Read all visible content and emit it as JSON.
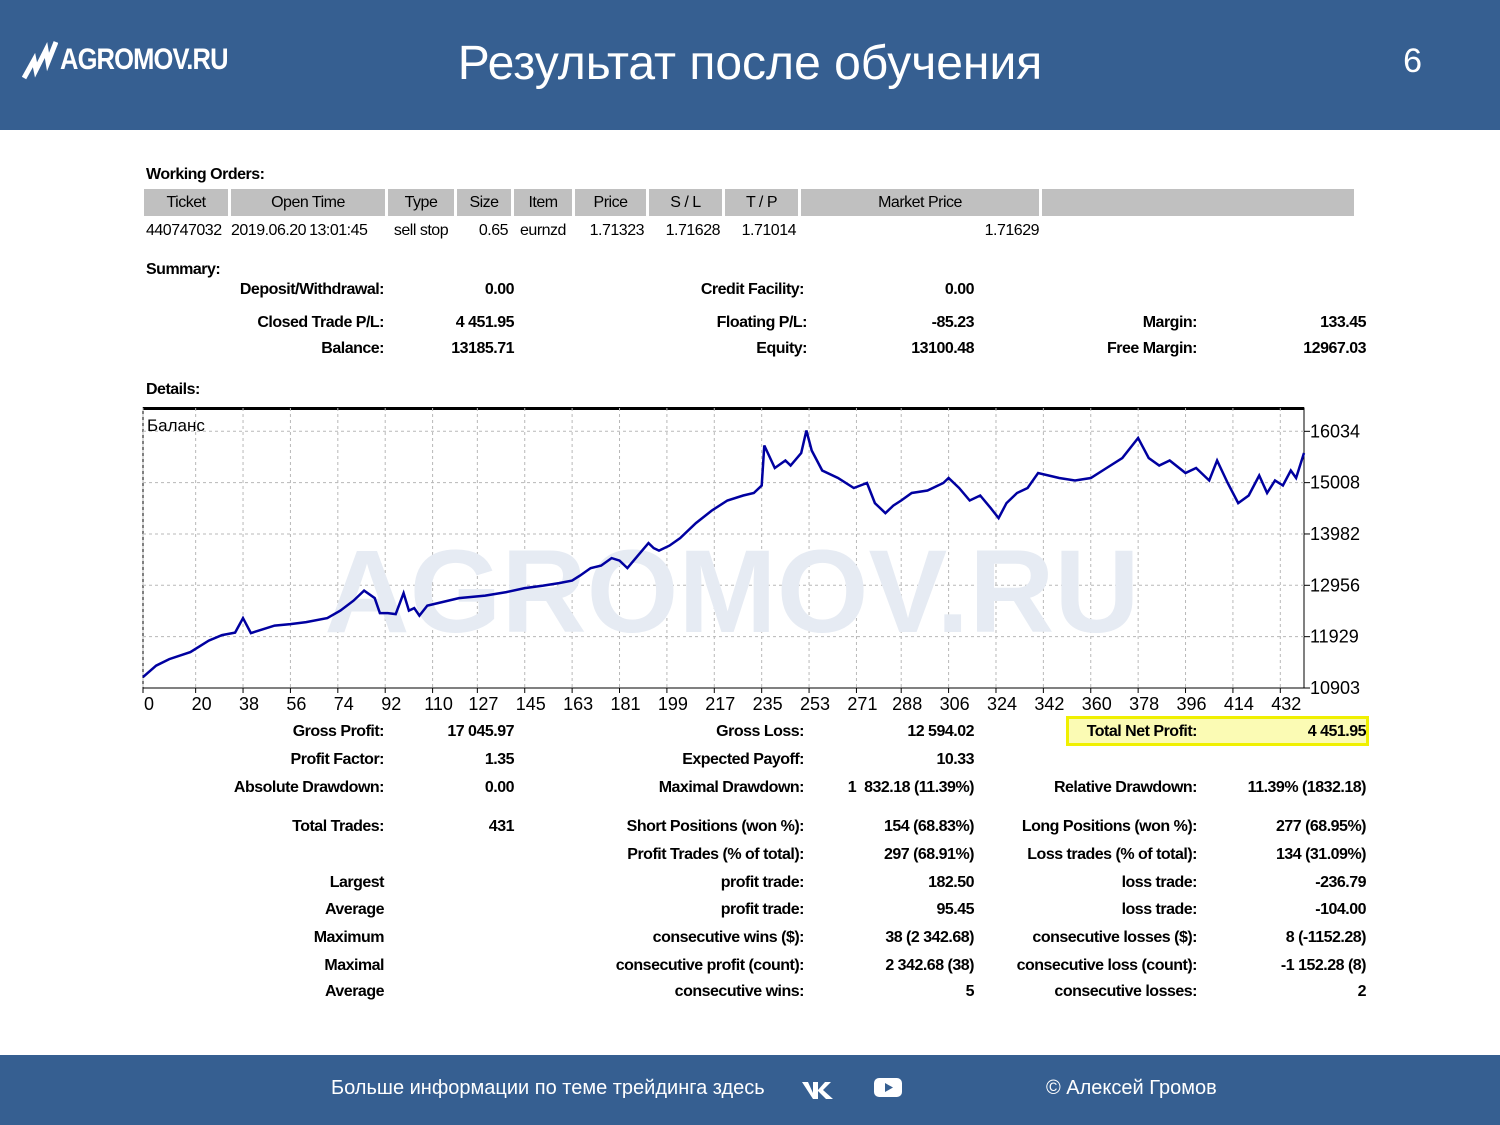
{
  "header": {
    "logo_text": "AGROMOV.RU",
    "title": "Результат после обучения",
    "page_number": "6",
    "bg_color": "#365f91"
  },
  "working_orders": {
    "heading": "Working Orders:",
    "columns": [
      "Ticket",
      "Open Time",
      "Type",
      "Size",
      "Item",
      "Price",
      "S / L",
      "T / P",
      "Market Price",
      ""
    ],
    "row": [
      "440747032",
      "2019.06.20",
      "13:01:45",
      "sell stop",
      "0.65",
      "eurnzd",
      "1.71323",
      "1.71628",
      "1.71014",
      "1.71629"
    ]
  },
  "summary": {
    "heading": "Summary:",
    "deposit_label": "Deposit/Withdrawal:",
    "deposit": "0.00",
    "credit_label": "Credit Facility:",
    "credit": "0.00",
    "closed_label": "Closed Trade P/L:",
    "closed": "4 451.95",
    "floating_label": "Floating P/L:",
    "floating": "-85.23",
    "margin_label": "Margin:",
    "margin": "133.45",
    "balance_label": "Balance:",
    "balance": "13185.71",
    "equity_label": "Equity:",
    "equity": "13100.48",
    "free_margin_label": "Free Margin:",
    "free_margin": "12967.03"
  },
  "details": {
    "heading": "Details:",
    "gross_profit_label": "Gross Profit:",
    "gross_profit": "17 045.97",
    "gross_loss_label": "Gross Loss:",
    "gross_loss": "12 594.02",
    "total_net_label": "Total Net Profit:",
    "total_net": "4 451.95",
    "profit_factor_label": "Profit Factor:",
    "profit_factor": "1.35",
    "expected_label": "Expected Payoff:",
    "expected": "10.33",
    "abs_dd_label": "Absolute Drawdown:",
    "abs_dd": "0.00",
    "max_dd_label": "Maximal Drawdown:",
    "max_dd": "1  832.18 (11.39%)",
    "rel_dd_label": "Relative Drawdown:",
    "rel_dd": "11.39% (1832.18)",
    "total_trades_label": "Total Trades:",
    "total_trades": "431",
    "short_label": "Short Positions (won %):",
    "short": "154 (68.83%)",
    "long_label": "Long Positions (won %):",
    "long": "277 (68.95%)",
    "profit_trades_label": "Profit Trades (% of total):",
    "profit_trades": "297 (68.91%)",
    "loss_trades_label": "Loss trades (% of total):",
    "loss_trades": "134 (31.09%)",
    "rows": [
      {
        "left": "Largest",
        "mid_label": "profit trade:",
        "mid": "182.50",
        "right_label": "loss trade:",
        "right": "-236.79"
      },
      {
        "left": "Average",
        "mid_label": "profit trade:",
        "mid": "95.45",
        "right_label": "loss trade:",
        "right": "-104.00"
      },
      {
        "left": "Maximum",
        "mid_label": "consecutive wins ($):",
        "mid": "38 (2 342.68)",
        "right_label": "consecutive losses ($):",
        "right": "8 (-1152.28)"
      },
      {
        "left": "Maximal",
        "mid_label": "consecutive profit (count):",
        "mid": "2 342.68 (38)",
        "right_label": "consecutive loss (count):",
        "right": "-1 152.28 (8)"
      },
      {
        "left": "Average",
        "mid_label": "consecutive wins:",
        "mid": "5",
        "right_label": "consecutive losses:",
        "right": "2"
      }
    ]
  },
  "chart_data": {
    "type": "line",
    "label": "Баланс",
    "watermark": "AGROMOV.RU",
    "x_ticks": [
      0,
      20,
      38,
      56,
      74,
      92,
      110,
      127,
      145,
      163,
      181,
      199,
      217,
      235,
      253,
      271,
      288,
      306,
      324,
      342,
      360,
      378,
      396,
      414,
      432
    ],
    "y_ticks": [
      10903,
      11929,
      12956,
      13982,
      15008,
      16034
    ],
    "xlim": [
      0,
      441
    ],
    "ylim": [
      10903,
      16500
    ],
    "grid": true,
    "color": "#0000a0",
    "series": [
      {
        "x": [
          0,
          5,
          10,
          18,
          25,
          30,
          35,
          38,
          41,
          44,
          50,
          56,
          62,
          70,
          75,
          80,
          84,
          88,
          90,
          93,
          96,
          99,
          101,
          103,
          105,
          108,
          112,
          120,
          130,
          138,
          145,
          152,
          158,
          163,
          166,
          170,
          174,
          178,
          181,
          184,
          188,
          192,
          194,
          196,
          200,
          204,
          210,
          216,
          222,
          228,
          232,
          235,
          236,
          240,
          244,
          246,
          250,
          252,
          254,
          258,
          264,
          270,
          275,
          278,
          282,
          285,
          288,
          292,
          298,
          304,
          306,
          310,
          314,
          318,
          322,
          325,
          328,
          332,
          336,
          340,
          344,
          348,
          354,
          360,
          366,
          372,
          378,
          382,
          386,
          390,
          396,
          400,
          405,
          408,
          412,
          416,
          420,
          424,
          427,
          430,
          433,
          436,
          438,
          441
        ],
        "y": [
          11120,
          11350,
          11480,
          11620,
          11850,
          11960,
          12010,
          12300,
          12000,
          12050,
          12150,
          12180,
          12220,
          12300,
          12450,
          12650,
          12850,
          12700,
          12400,
          12400,
          12380,
          12800,
          12450,
          12500,
          12350,
          12550,
          12600,
          12700,
          12750,
          12820,
          12900,
          12950,
          13000,
          13050,
          13150,
          13300,
          13350,
          13500,
          13450,
          13300,
          13550,
          13800,
          13700,
          13650,
          13750,
          13900,
          14200,
          14450,
          14650,
          14750,
          14800,
          14950,
          15750,
          15300,
          15450,
          15350,
          15600,
          16050,
          15650,
          15250,
          15100,
          14900,
          15000,
          14600,
          14400,
          14550,
          14650,
          14800,
          14850,
          15000,
          15100,
          14900,
          14650,
          14750,
          14500,
          14300,
          14600,
          14800,
          14900,
          15200,
          15150,
          15100,
          15050,
          15100,
          15300,
          15500,
          15900,
          15500,
          15350,
          15450,
          15200,
          15300,
          15050,
          15450,
          15000,
          14600,
          14750,
          15150,
          14800,
          15050,
          14950,
          15250,
          15100,
          15600
        ]
      }
    ]
  },
  "footer": {
    "text": "Больше информации по теме трейдинга здесь",
    "copyright": "© Алексей Громов"
  }
}
